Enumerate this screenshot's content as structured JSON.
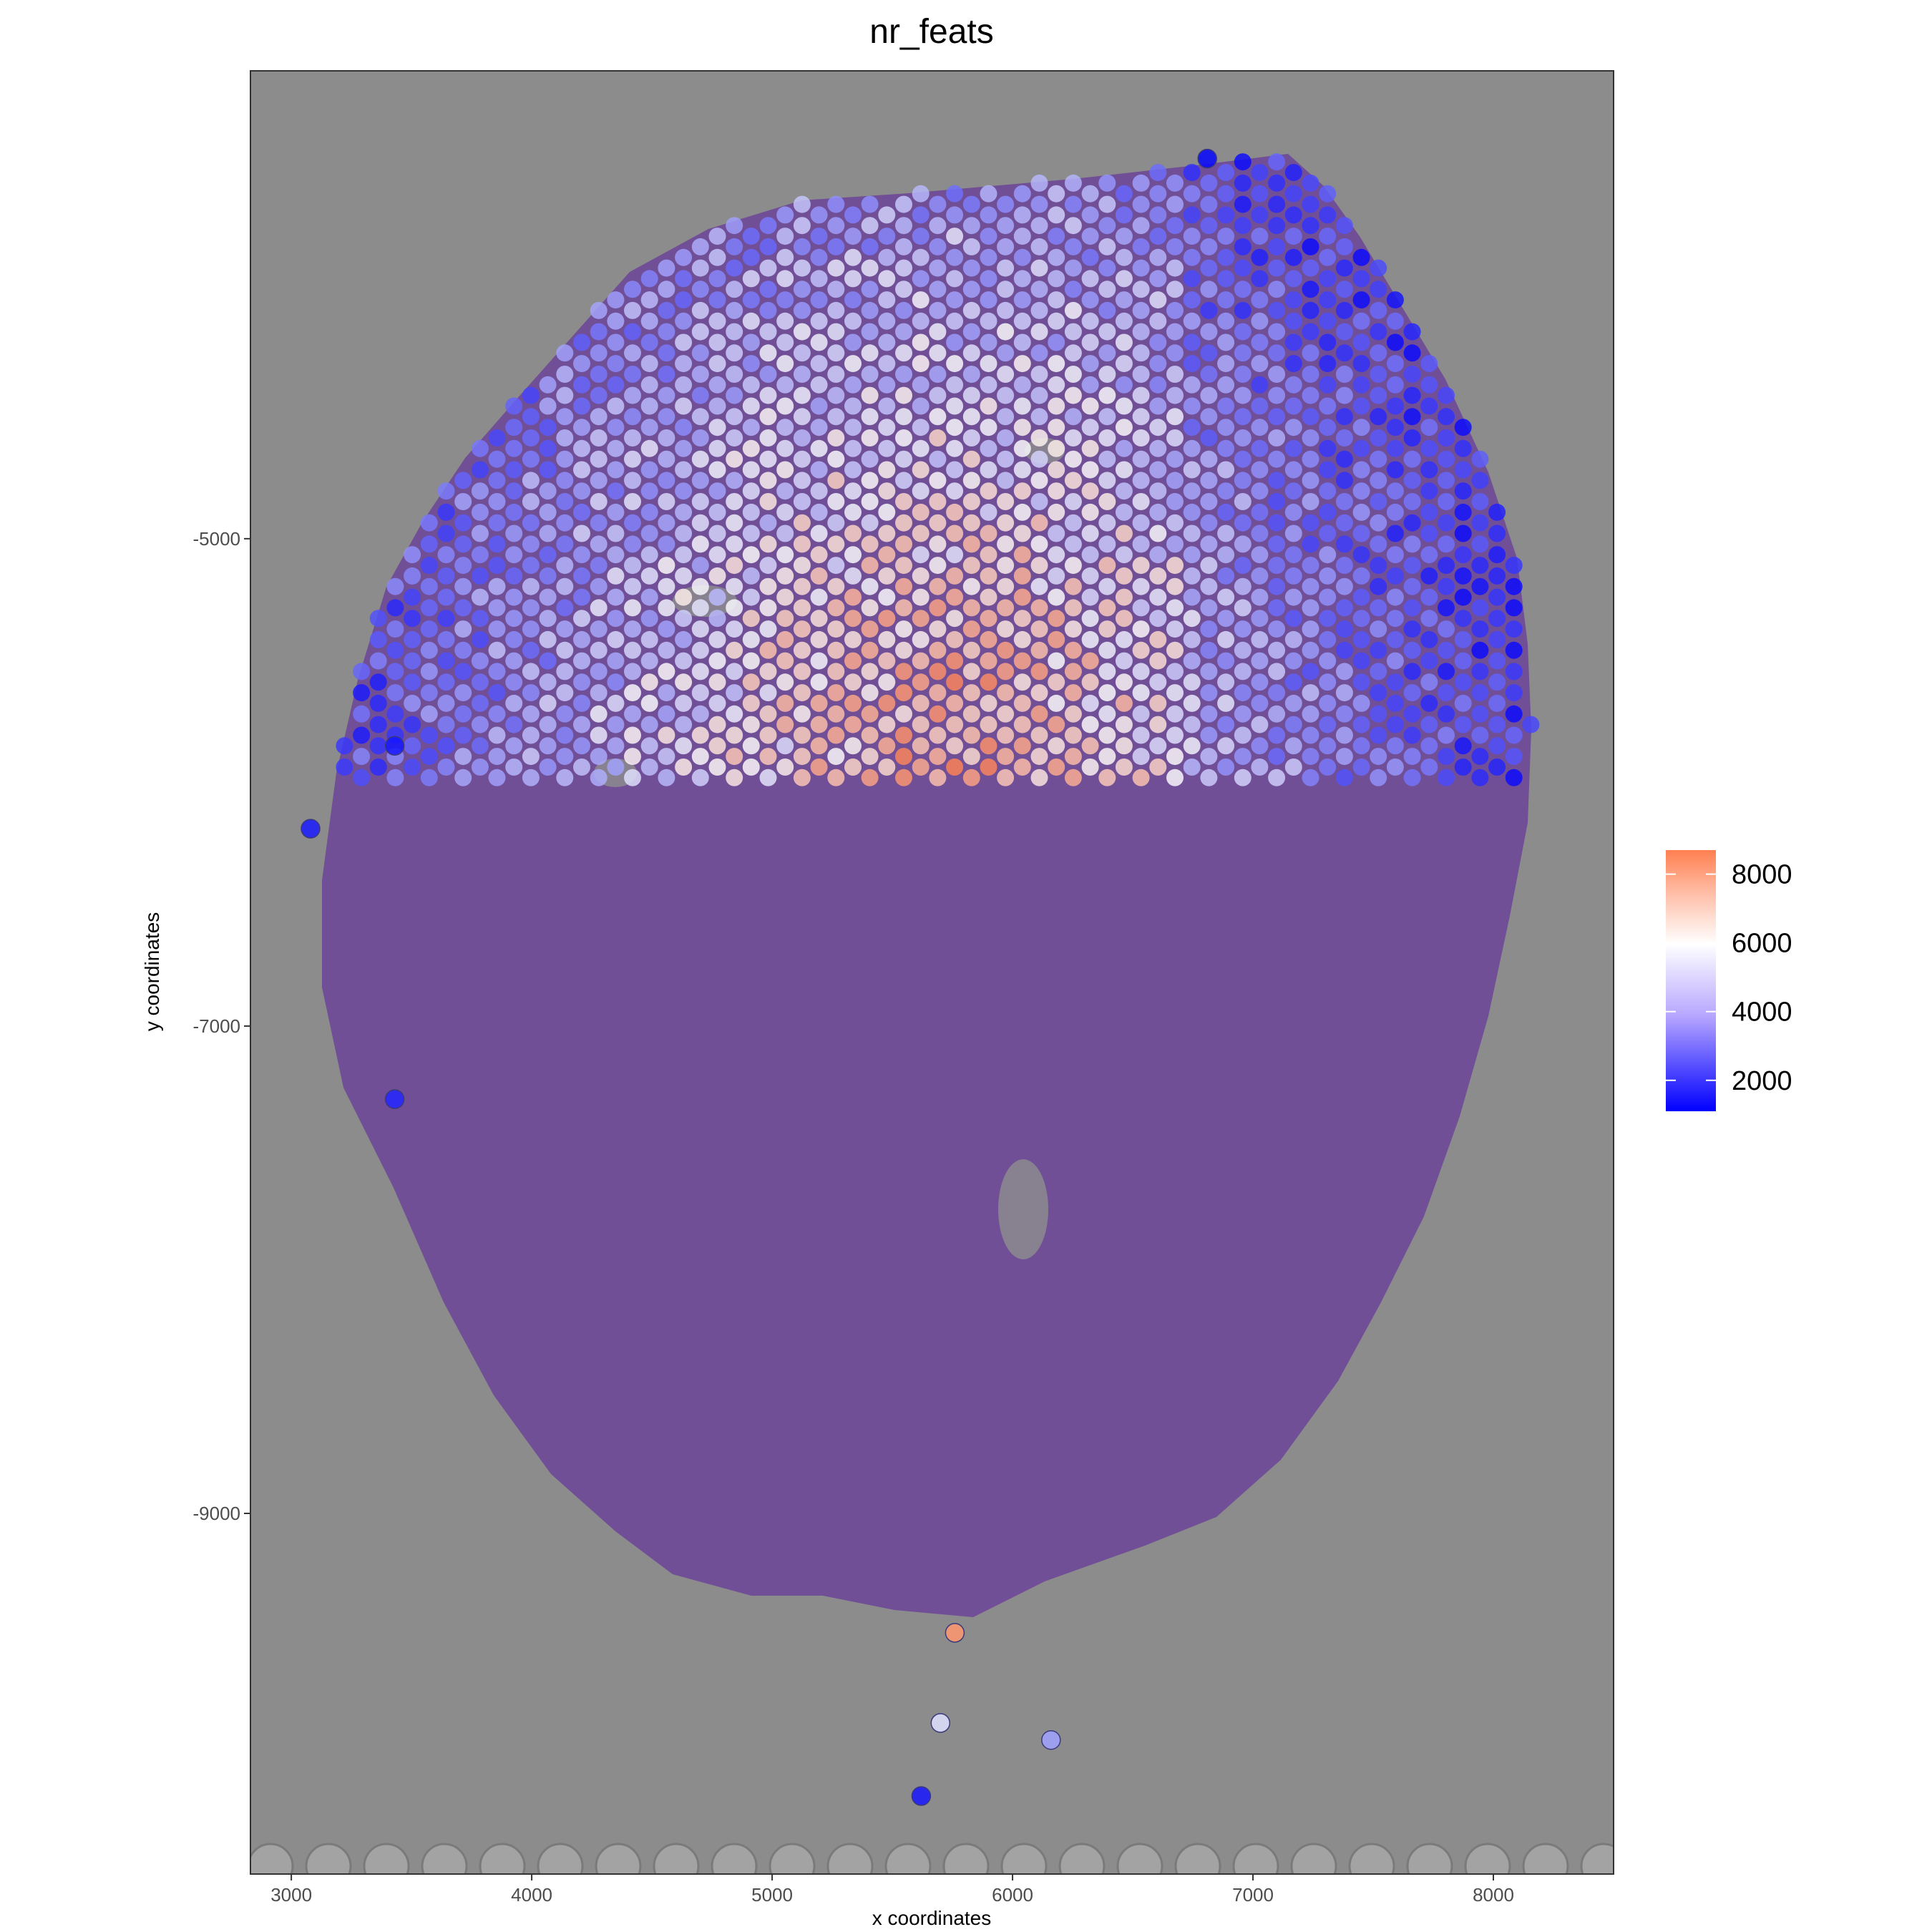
{
  "chart_data": {
    "type": "scatter",
    "title": "nr_feats",
    "xlabel": "x coordinates",
    "ylabel": "y coordinates",
    "xlim": [
      2830,
      8500
    ],
    "ylim": [
      -10480,
      -3080
    ],
    "x_ticks": [
      {
        "value": 3000,
        "label": "3000"
      },
      {
        "value": 4000,
        "label": "4000"
      },
      {
        "value": 5000,
        "label": "5000"
      },
      {
        "value": 6000,
        "label": "6000"
      },
      {
        "value": 7000,
        "label": "7000"
      },
      {
        "value": 8000,
        "label": "8000"
      }
    ],
    "y_ticks": [
      {
        "value": -5000,
        "label": "-5000"
      },
      {
        "value": -7000,
        "label": "-7000"
      },
      {
        "value": -9000,
        "label": "-9000"
      }
    ],
    "grid": false,
    "background": "H&E tissue image (grayscale with purple tissue section)",
    "legend": {
      "position": "right",
      "type": "colorbar",
      "range": [
        1100,
        8700
      ],
      "ticks": [
        {
          "value": 8000,
          "label": "8000"
        },
        {
          "value": 6000,
          "label": "6000"
        },
        {
          "value": 4000,
          "label": "4000"
        },
        {
          "value": 2000,
          "label": "2000"
        }
      ],
      "low_color": "#0000ff",
      "mid_color": "#ffffff",
      "high_color": "#ff7f50",
      "midpoint": 6000
    },
    "spot_grid": {
      "x_spacing": 141,
      "y_spacing": 122,
      "x_origin": 3080,
      "y_origin": -3410
    },
    "series": [
      {
        "spot_values_summary": "approx. 1900 spots; center of section ~6500-8500 features, periphery and connective tissue ~2000-5000",
        "outlier_points": [
          {
            "x": 6810,
            "y": -3440,
            "value": 1200
          },
          {
            "x": 3080,
            "y": -6190,
            "value": 1600
          },
          {
            "x": 3430,
            "y": -5850,
            "value": 1500
          },
          {
            "x": 3430,
            "y": -7300,
            "value": 1800
          },
          {
            "x": 5620,
            "y": -10160,
            "value": 1500
          },
          {
            "x": 6160,
            "y": -9930,
            "value": 4200
          },
          {
            "x": 5700,
            "y": -9860,
            "value": 5400
          },
          {
            "x": 5760,
            "y": -9490,
            "value": 8200
          }
        ]
      }
    ]
  },
  "colors": {
    "panel_bg": "#8c8c8c",
    "tissue": "#6e4a98",
    "tissue_dark": "#4e2f7a",
    "low": "#0000ff",
    "mid": "#ffffff",
    "high": "#ff7f50"
  }
}
